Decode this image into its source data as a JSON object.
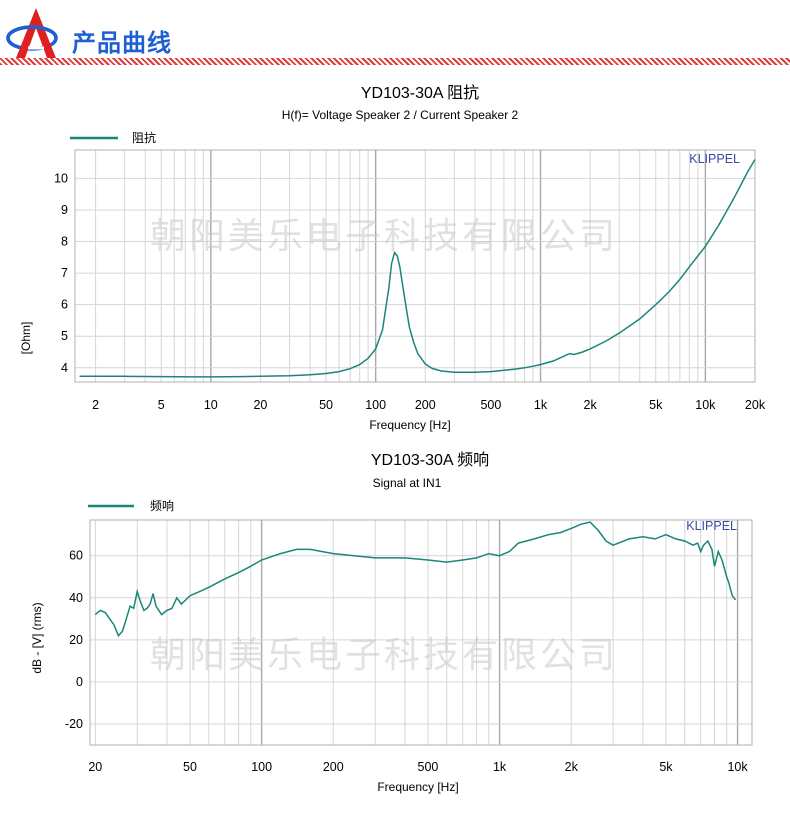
{
  "header": {
    "title": "产品曲线",
    "colors": {
      "title": "#1f5fd0",
      "logo": "#e02020",
      "stripe": "#e23b3b"
    }
  },
  "watermark": "朝阳美乐电子科技有限公司",
  "brand": "KLIPPEL",
  "chart_data": [
    {
      "type": "line",
      "title": "YD103-30A 阻抗",
      "subtitle": "H(f)= Voltage Speaker 2 / Current Speaker 2",
      "xlabel": "Frequency [Hz]",
      "ylabel": "[Ohm]",
      "xscale": "log",
      "xlim": [
        1.5,
        20000
      ],
      "ylim": [
        3.55,
        10.9
      ],
      "grid": true,
      "legend_position": "top-left",
      "x_ticks": [
        2,
        5,
        10,
        20,
        50,
        100,
        200,
        500,
        1000,
        2000,
        5000,
        10000,
        20000
      ],
      "x_tick_labels": [
        "2",
        "5",
        "10",
        "20",
        "50",
        "100",
        "200",
        "500",
        "1k",
        "2k",
        "5k",
        "10k",
        "20k"
      ],
      "y_ticks": [
        4,
        5,
        6,
        7,
        8,
        9,
        10
      ],
      "y_tick_labels": [
        "4",
        "5",
        "6",
        "7",
        "8",
        "9",
        "10"
      ],
      "color": "#1b8579",
      "series": [
        {
          "name": "阻抗",
          "x": [
            1.6,
            3,
            5,
            8,
            10,
            15,
            20,
            30,
            40,
            50,
            60,
            70,
            80,
            90,
            100,
            110,
            120,
            125,
            130,
            135,
            140,
            150,
            160,
            170,
            180,
            200,
            220,
            250,
            300,
            400,
            500,
            600,
            700,
            800,
            900,
            1000,
            1200,
            1400,
            1500,
            1600,
            1800,
            2000,
            2500,
            3000,
            4000,
            5000,
            6000,
            7000,
            8000,
            10000,
            12000,
            15000,
            18000,
            20000
          ],
          "y": [
            3.73,
            3.73,
            3.72,
            3.71,
            3.71,
            3.72,
            3.73,
            3.75,
            3.78,
            3.82,
            3.88,
            3.97,
            4.1,
            4.3,
            4.6,
            5.2,
            6.5,
            7.3,
            7.65,
            7.55,
            7.2,
            6.2,
            5.3,
            4.8,
            4.45,
            4.12,
            3.98,
            3.9,
            3.86,
            3.86,
            3.88,
            3.92,
            3.96,
            4.0,
            4.05,
            4.1,
            4.22,
            4.38,
            4.45,
            4.42,
            4.5,
            4.6,
            4.85,
            5.1,
            5.55,
            6.0,
            6.4,
            6.8,
            7.2,
            7.85,
            8.5,
            9.4,
            10.2,
            10.6
          ]
        }
      ]
    },
    {
      "type": "line",
      "title": "YD103-30A 频响",
      "subtitle": "Signal at IN1",
      "xlabel": "Frequency [Hz]",
      "ylabel": "dB - [V]  (rms)",
      "xscale": "log",
      "xlim": [
        19,
        11500
      ],
      "ylim": [
        -30,
        77
      ],
      "grid": true,
      "legend_position": "top-left",
      "x_ticks": [
        20,
        50,
        100,
        200,
        500,
        1000,
        2000,
        5000,
        10000
      ],
      "x_tick_labels": [
        "20",
        "50",
        "100",
        "200",
        "500",
        "1k",
        "2k",
        "5k",
        "10k"
      ],
      "y_ticks": [
        -20,
        0,
        20,
        40,
        60
      ],
      "y_tick_labels": [
        "-20",
        "0",
        "20",
        "40",
        "60"
      ],
      "color": "#1b8579",
      "series": [
        {
          "name": "频响",
          "x": [
            20,
            21,
            22,
            23,
            24,
            25,
            26,
            27,
            28,
            29,
            30,
            31,
            32,
            33,
            34,
            35,
            36,
            38,
            40,
            42,
            44,
            46,
            48,
            50,
            55,
            60,
            70,
            80,
            90,
            100,
            120,
            140,
            160,
            200,
            300,
            400,
            500,
            600,
            700,
            800,
            900,
            1000,
            1100,
            1200,
            1400,
            1600,
            1800,
            2000,
            2200,
            2400,
            2600,
            2800,
            3000,
            3500,
            4000,
            4500,
            5000,
            5500,
            6000,
            6500,
            6800,
            7000,
            7200,
            7500,
            7800,
            8000,
            8300,
            8600,
            9000,
            9200,
            9500,
            9800
          ],
          "y": [
            32,
            34,
            33,
            30,
            27,
            22,
            24,
            30,
            36,
            35,
            43,
            38,
            34,
            35,
            37,
            42,
            36,
            32,
            34,
            35,
            40,
            37,
            39,
            41,
            43,
            45,
            49,
            52,
            55,
            58,
            61,
            63,
            63,
            61,
            59,
            59,
            58,
            57,
            58,
            59,
            61,
            60,
            62,
            66,
            68,
            70,
            71,
            73,
            75,
            76,
            72,
            67,
            65,
            68,
            69,
            68,
            70,
            68,
            67,
            65,
            66,
            62,
            65,
            67,
            63,
            55,
            62,
            58,
            50,
            47,
            41,
            39
          ]
        }
      ]
    }
  ]
}
